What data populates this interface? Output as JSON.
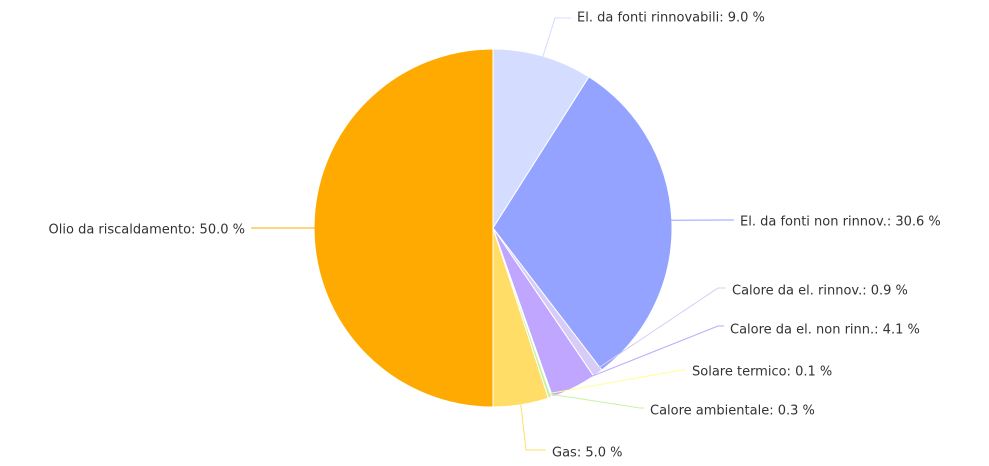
{
  "chart_data": {
    "type": "pie",
    "labels": [
      "El. da fonti rinnovabili: 9.0 %",
      "El. da fonti non rinnov.: 30.6 %",
      "Calore da el. rinnov.: 0.9 %",
      "Calore da el. non rinn.: 4.1 %",
      "Solare termico: 0.1 %",
      "Calore ambientale: 0.3 %",
      "Gas: 5.0 %",
      "Olio da riscaldamento: 50.0 %"
    ],
    "values": [
      9.0,
      30.6,
      0.9,
      4.1,
      0.1,
      0.3,
      5.0,
      50.0
    ],
    "colors": [
      "#d4dcff",
      "#94a3ff",
      "#d6ccf7",
      "#c0a6ff",
      "#ffff99",
      "#c6f2a6",
      "#ffdd66",
      "#ffaa00"
    ]
  }
}
